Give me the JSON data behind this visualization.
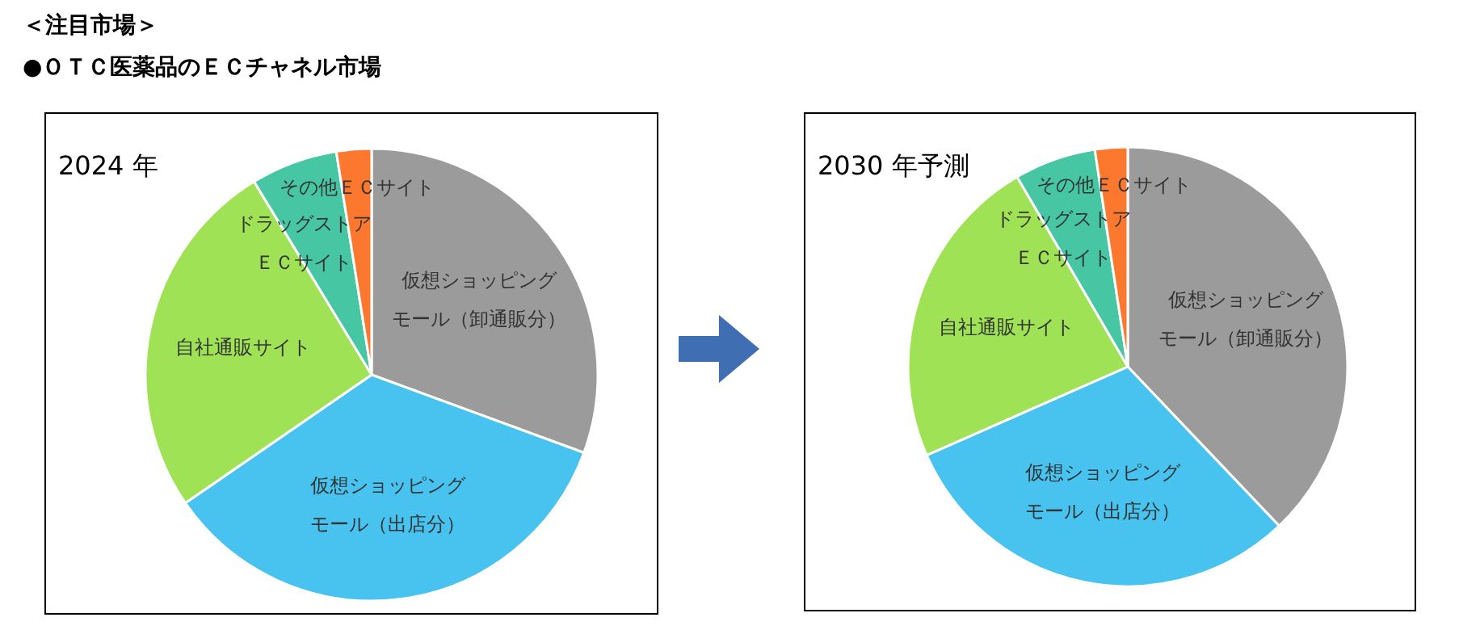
{
  "chart_data": [
    {
      "type": "pie",
      "title": "2024 年",
      "annotations": [
        "＜注目市場＞",
        "●ＯＴＣ医薬品のＥＣチャネル市場"
      ],
      "categories": [
        "仮想ショッピングモール（卸通販分）",
        "仮想ショッピングモール（出店分）",
        "自社通販サイト",
        "ドラッグストアＥＣサイト",
        "その他ＥＣサイト"
      ],
      "values": [
        30.6,
        34.8,
        25.9,
        6.2,
        2.5
      ],
      "colors": [
        "#9b9b9b",
        "#48c3f0",
        "#9fe255",
        "#47c6a3",
        "#fc782e"
      ],
      "data_labels": false,
      "legend": false
    },
    {
      "type": "pie",
      "title": "2030 年予測",
      "categories": [
        "仮想ショッピングモール（卸通販分）",
        "仮想ショッピングモール（出店分）",
        "自社通販サイト",
        "ドラッグストアＥＣサイト",
        "その他ＥＣサイト"
      ],
      "values": [
        37.9,
        30.5,
        23.2,
        6,
        2.4
      ],
      "colors": [
        "#9b9b9b",
        "#48c3f0",
        "#9fe255",
        "#47c6a3",
        "#fc782e"
      ],
      "data_labels": false,
      "legend": false
    }
  ]
}
